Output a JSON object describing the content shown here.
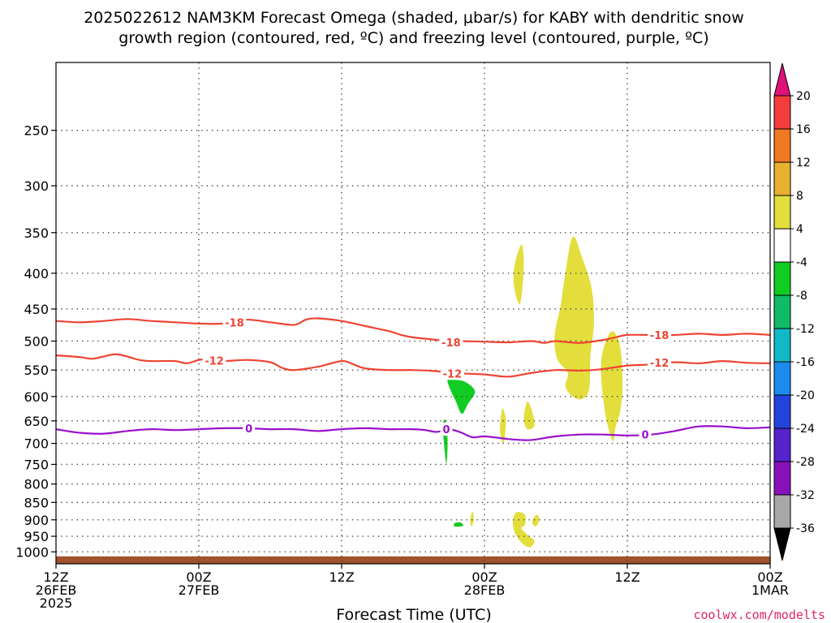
{
  "chart_data": {
    "type": "contour-time-height",
    "title_line1": "2025022612 NAM3KM Forecast Omega (shaded, μbar/s) for KABY with dendritic snow",
    "title_line2": "growth region (contoured, red, ºC) and freezing level (contoured, purple, ºC)",
    "xlabel": "Forecast Time (UTC)",
    "xlim_hours": [
      0,
      60
    ],
    "x_ticks": [
      {
        "hour": 0,
        "lines": [
          "12Z",
          "26FEB",
          "2025"
        ]
      },
      {
        "hour": 12,
        "lines": [
          "00Z",
          "27FEB"
        ]
      },
      {
        "hour": 24,
        "lines": [
          "12Z"
        ]
      },
      {
        "hour": 36,
        "lines": [
          "00Z",
          "28FEB"
        ]
      },
      {
        "hour": 48,
        "lines": [
          "12Z"
        ]
      },
      {
        "hour": 60,
        "lines": [
          "00Z",
          "1MAR"
        ]
      }
    ],
    "y_scale": "log-pressure",
    "ylim_hpa": [
      1040,
      200
    ],
    "y_ticks": [
      250,
      300,
      350,
      400,
      450,
      500,
      550,
      600,
      650,
      700,
      750,
      800,
      850,
      900,
      950,
      1000
    ],
    "grid": true,
    "contours": [
      {
        "level": "-18",
        "color": "#ee4433",
        "points": [
          [
            0,
            468
          ],
          [
            2,
            470
          ],
          [
            4,
            468
          ],
          [
            6,
            465
          ],
          [
            8,
            468
          ],
          [
            10,
            470
          ],
          [
            12,
            472
          ],
          [
            14,
            472
          ],
          [
            16,
            466
          ],
          [
            18,
            470
          ],
          [
            20,
            474
          ],
          [
            21,
            466
          ],
          [
            22,
            464
          ],
          [
            24,
            468
          ],
          [
            26,
            476
          ],
          [
            28,
            484
          ],
          [
            29,
            490
          ],
          [
            30,
            494
          ],
          [
            31,
            496
          ],
          [
            32,
            498
          ],
          [
            33,
            500
          ],
          [
            34,
            500
          ],
          [
            36,
            501
          ],
          [
            38,
            502
          ],
          [
            40,
            500
          ],
          [
            41,
            503
          ],
          [
            42,
            500
          ],
          [
            44,
            503
          ],
          [
            46,
            498
          ],
          [
            47,
            494
          ],
          [
            48,
            490
          ],
          [
            50,
            490
          ],
          [
            52,
            490
          ],
          [
            54,
            488
          ],
          [
            56,
            490
          ],
          [
            58,
            488
          ],
          [
            60,
            490
          ]
        ],
        "labels": [
          {
            "x": 15.0,
            "p": 470
          },
          {
            "x": 33.2,
            "p": 502
          },
          {
            "x": 50.7,
            "p": 490
          }
        ]
      },
      {
        "level": "-12",
        "color": "#ee4433",
        "points": [
          [
            0,
            524
          ],
          [
            2,
            527
          ],
          [
            3,
            530
          ],
          [
            4,
            526
          ],
          [
            5,
            522
          ],
          [
            6,
            526
          ],
          [
            7,
            532
          ],
          [
            8,
            534
          ],
          [
            10,
            534
          ],
          [
            11,
            538
          ],
          [
            12,
            532
          ],
          [
            13,
            530
          ],
          [
            14,
            534
          ],
          [
            16,
            532
          ],
          [
            18,
            536
          ],
          [
            19,
            546
          ],
          [
            20,
            550
          ],
          [
            22,
            544
          ],
          [
            24,
            534
          ],
          [
            25,
            540
          ],
          [
            26,
            547
          ],
          [
            28,
            550
          ],
          [
            30,
            550
          ],
          [
            32,
            552
          ],
          [
            34,
            556
          ],
          [
            36,
            558
          ],
          [
            38,
            562
          ],
          [
            40,
            555
          ],
          [
            42,
            550
          ],
          [
            44,
            551
          ],
          [
            46,
            548
          ],
          [
            48,
            542
          ],
          [
            50,
            540
          ],
          [
            52,
            536
          ],
          [
            54,
            538
          ],
          [
            56,
            534
          ],
          [
            58,
            537
          ],
          [
            60,
            538
          ]
        ],
        "labels": [
          {
            "x": 13.3,
            "p": 533
          },
          {
            "x": 33.3,
            "p": 556
          },
          {
            "x": 50.7,
            "p": 537
          }
        ]
      },
      {
        "level": "0",
        "color": "#9911cc",
        "points": [
          [
            0,
            668
          ],
          [
            2,
            676
          ],
          [
            4,
            678
          ],
          [
            6,
            672
          ],
          [
            8,
            668
          ],
          [
            10,
            670
          ],
          [
            12,
            668
          ],
          [
            14,
            666
          ],
          [
            16,
            666
          ],
          [
            18,
            668
          ],
          [
            20,
            668
          ],
          [
            22,
            672
          ],
          [
            24,
            668
          ],
          [
            26,
            666
          ],
          [
            28,
            668
          ],
          [
            30,
            668
          ],
          [
            31,
            670
          ],
          [
            32,
            674
          ],
          [
            33,
            668
          ],
          [
            34,
            675
          ],
          [
            35,
            686
          ],
          [
            36,
            684
          ],
          [
            38,
            690
          ],
          [
            39,
            692
          ],
          [
            40,
            692
          ],
          [
            42,
            684
          ],
          [
            44,
            680
          ],
          [
            46,
            680
          ],
          [
            48,
            682
          ],
          [
            50,
            680
          ],
          [
            52,
            672
          ],
          [
            54,
            662
          ],
          [
            56,
            662
          ],
          [
            58,
            666
          ],
          [
            60,
            664
          ]
        ],
        "labels": [
          {
            "x": 16.2,
            "p": 666
          },
          {
            "x": 32.8,
            "p": 668
          },
          {
            "x": 49.5,
            "p": 680
          }
        ]
      }
    ],
    "shaded_regions": [
      {
        "category": "4 to 8",
        "color": "#e3de3c",
        "points": [
          [
            38.5,
            392
          ],
          [
            39.1,
            364
          ],
          [
            39.3,
            390
          ],
          [
            39.0,
            442
          ],
          [
            38.5,
            420
          ]
        ]
      },
      {
        "category": "4 to 8",
        "color": "#e3de3c",
        "points": [
          [
            43.4,
            355
          ],
          [
            44.2,
            380
          ],
          [
            45.0,
            420
          ],
          [
            45.2,
            470
          ],
          [
            44.9,
            525
          ],
          [
            44.8,
            585
          ],
          [
            44.2,
            605
          ],
          [
            43.4,
            600
          ],
          [
            42.8,
            580
          ],
          [
            43.0,
            555
          ],
          [
            42.1,
            530
          ],
          [
            41.9,
            490
          ],
          [
            42.4,
            445
          ],
          [
            42.7,
            410
          ]
        ]
      },
      {
        "category": "4 to 8",
        "color": "#e3de3c",
        "points": [
          [
            46.6,
            485
          ],
          [
            47.2,
            495
          ],
          [
            47.5,
            525
          ],
          [
            47.6,
            580
          ],
          [
            47.4,
            630
          ],
          [
            47.0,
            665
          ],
          [
            46.8,
            695
          ],
          [
            46.3,
            655
          ],
          [
            46.0,
            610
          ],
          [
            45.8,
            560
          ],
          [
            45.9,
            520
          ]
        ]
      },
      {
        "category": "4 to 8",
        "color": "#e3de3c",
        "points": [
          [
            39.6,
            610
          ],
          [
            40.0,
            630
          ],
          [
            40.2,
            660
          ],
          [
            39.6,
            668
          ],
          [
            39.3,
            645
          ]
        ]
      },
      {
        "category": "4 to 8",
        "color": "#e3de3c",
        "points": [
          [
            37.5,
            625
          ],
          [
            37.8,
            650
          ],
          [
            37.6,
            700
          ],
          [
            37.3,
            670
          ]
        ]
      },
      {
        "category": "4 to 8",
        "color": "#e3de3c",
        "points": [
          [
            35.0,
            875
          ],
          [
            35.1,
            900
          ],
          [
            34.9,
            920
          ],
          [
            34.8,
            900
          ]
        ]
      },
      {
        "category": "4 to 8",
        "color": "#e3de3c",
        "points": [
          [
            38.7,
            878
          ],
          [
            39.4,
            885
          ],
          [
            39.4,
            915
          ],
          [
            39.1,
            925
          ],
          [
            39.6,
            945
          ],
          [
            40.2,
            965
          ],
          [
            39.8,
            985
          ],
          [
            39.1,
            970
          ],
          [
            38.5,
            935
          ],
          [
            38.4,
            900
          ]
        ]
      },
      {
        "category": "4 to 8",
        "color": "#e3de3c",
        "points": [
          [
            40.4,
            885
          ],
          [
            40.6,
            900
          ],
          [
            40.3,
            920
          ],
          [
            40.0,
            905
          ]
        ]
      },
      {
        "category": "-8 to -4",
        "color": "#11cc22",
        "points": [
          [
            33.5,
            568
          ],
          [
            34.4,
            572
          ],
          [
            35.2,
            590
          ],
          [
            34.6,
            615
          ],
          [
            34.1,
            635
          ],
          [
            33.6,
            610
          ],
          [
            33.1,
            585
          ],
          [
            32.9,
            568
          ]
        ]
      },
      {
        "category": "-8 to -4",
        "color": "#11cc22",
        "points": [
          [
            32.7,
            648
          ],
          [
            32.9,
            690
          ],
          [
            32.8,
            748
          ],
          [
            32.6,
            700
          ],
          [
            32.5,
            660
          ]
        ]
      },
      {
        "category": "-8 to -4",
        "color": "#11cc22",
        "points": [
          [
            33.5,
            910
          ],
          [
            34.0,
            908
          ],
          [
            34.2,
            918
          ],
          [
            33.5,
            920
          ]
        ]
      }
    ],
    "terrain": {
      "color": "#a0522d",
      "top_hpa": 1015,
      "bottom_hpa": 1040
    },
    "colorbar": {
      "ticks": [
        "20",
        "16",
        "12",
        "8",
        "4",
        "-4",
        "-8",
        "-12",
        "-16",
        "-20",
        "-24",
        "-28",
        "-32",
        "-36"
      ],
      "top_color": "#e0127a",
      "colors": [
        "#f53c3c",
        "#f07a22",
        "#e8b030",
        "#e3de3c",
        "#ffffff",
        "#11cc22",
        "#11bb66",
        "#11b8c8",
        "#1a8cee",
        "#2244dd",
        "#5522cc",
        "#8811bb",
        "#a8a8a8"
      ],
      "bottom_color": "#000000"
    },
    "credit": "coolwx.com/modelts"
  }
}
